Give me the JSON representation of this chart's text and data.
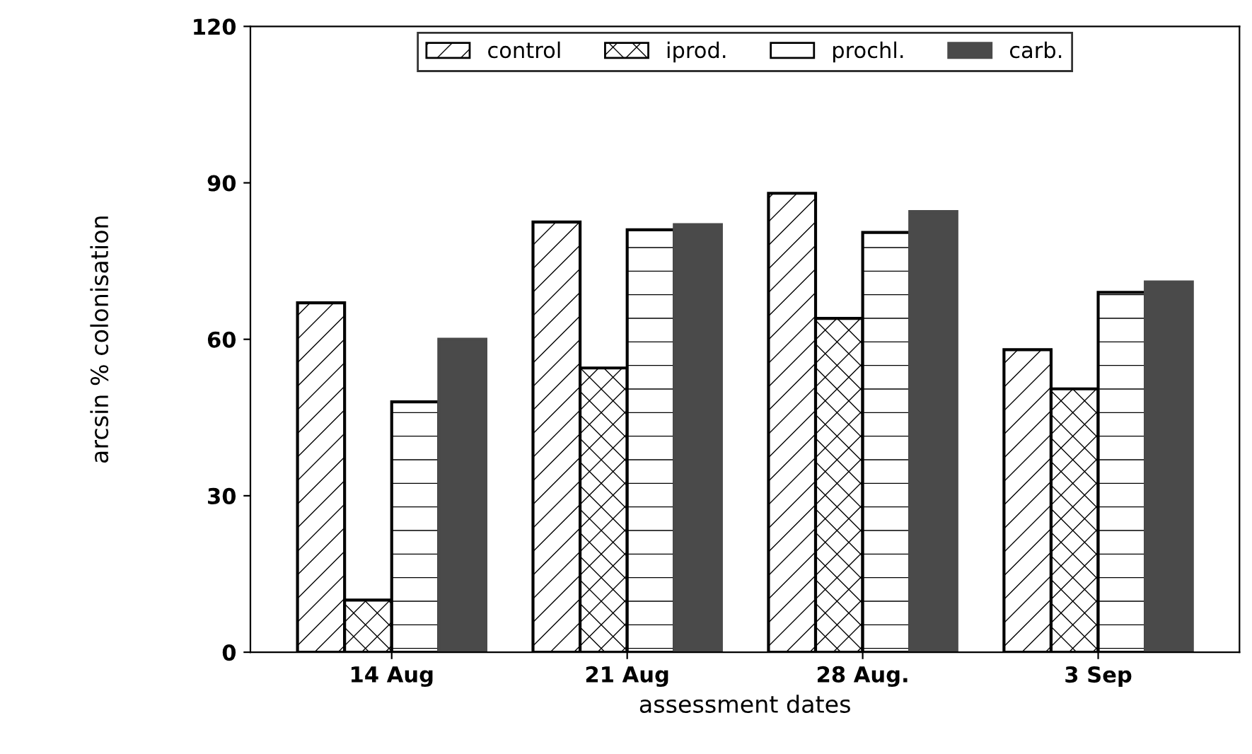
{
  "chart_data": {
    "type": "bar",
    "xlabel": "assessment dates",
    "ylabel": "arcsin % colonisation",
    "categories": [
      "14 Aug",
      "21 Aug",
      "28 Aug.",
      "3 Sep"
    ],
    "series": [
      {
        "name": "control",
        "color": "#000000",
        "values": [
          67,
          82.5,
          88,
          58
        ]
      },
      {
        "name": "iprod.",
        "color": "#000000",
        "values": [
          10,
          54.5,
          64,
          50.5
        ]
      },
      {
        "name": "prochl.",
        "color": "#000000",
        "values": [
          48,
          81,
          80.5,
          69
        ]
      },
      {
        "name": "carb.",
        "color": "#4a4a4a",
        "values": [
          60,
          82,
          84.5,
          71
        ]
      }
    ],
    "ylim": [
      0,
      120
    ],
    "yticks": [
      0,
      30,
      60,
      90,
      120
    ],
    "grid": false,
    "legend": "top"
  }
}
